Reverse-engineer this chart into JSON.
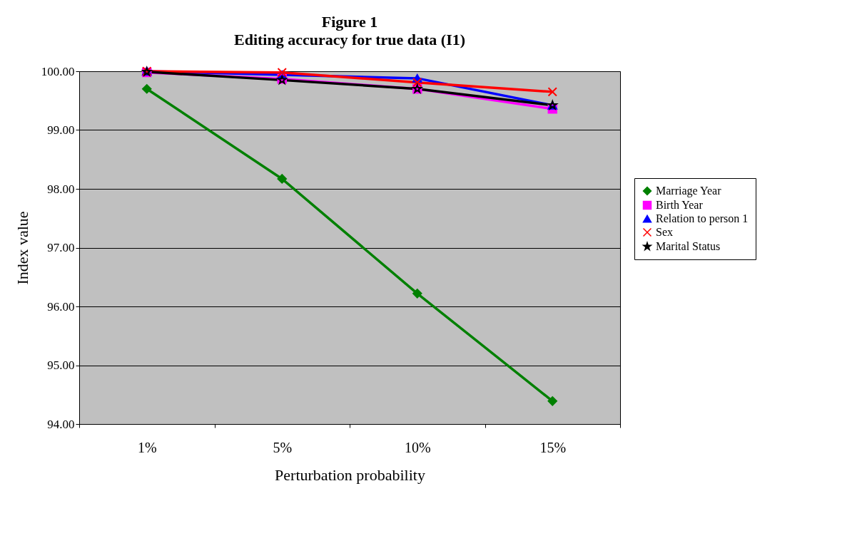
{
  "chart_data": {
    "type": "line",
    "title": "Figure 1",
    "subtitle": "Editing accuracy for true data (I1)",
    "xlabel": "Perturbation probability",
    "ylabel": "Index value",
    "categories": [
      "1%",
      "5%",
      "10%",
      "15%"
    ],
    "series": [
      {
        "name": "Marriage Year",
        "color": "#008000",
        "marker": "diamond",
        "values": [
          99.7,
          98.17,
          96.22,
          94.39
        ]
      },
      {
        "name": "Birth Year",
        "color": "#ff00ff",
        "marker": "square",
        "values": [
          99.98,
          99.87,
          99.7,
          99.36
        ]
      },
      {
        "name": "Relation to person 1",
        "color": "#0000ff",
        "marker": "triangle",
        "values": [
          100.0,
          99.94,
          99.88,
          99.42
        ]
      },
      {
        "name": "Sex",
        "color": "#ff0000",
        "marker": "cross",
        "values": [
          100.0,
          99.98,
          99.81,
          99.65
        ]
      },
      {
        "name": "Marital Status",
        "color": "#000000",
        "marker": "star",
        "values": [
          99.99,
          99.85,
          99.7,
          99.42
        ]
      }
    ],
    "ylim": [
      94,
      100
    ],
    "yticks": [
      {
        "value": 94,
        "label": "94.00"
      },
      {
        "value": 95,
        "label": "95.00"
      },
      {
        "value": 96,
        "label": "96.00"
      },
      {
        "value": 97,
        "label": "97.00"
      },
      {
        "value": 98,
        "label": "98.00"
      },
      {
        "value": 99,
        "label": "99.00"
      },
      {
        "value": 100,
        "label": "100.00"
      }
    ],
    "grid": "y",
    "legend": "right",
    "line_style": "solid"
  }
}
